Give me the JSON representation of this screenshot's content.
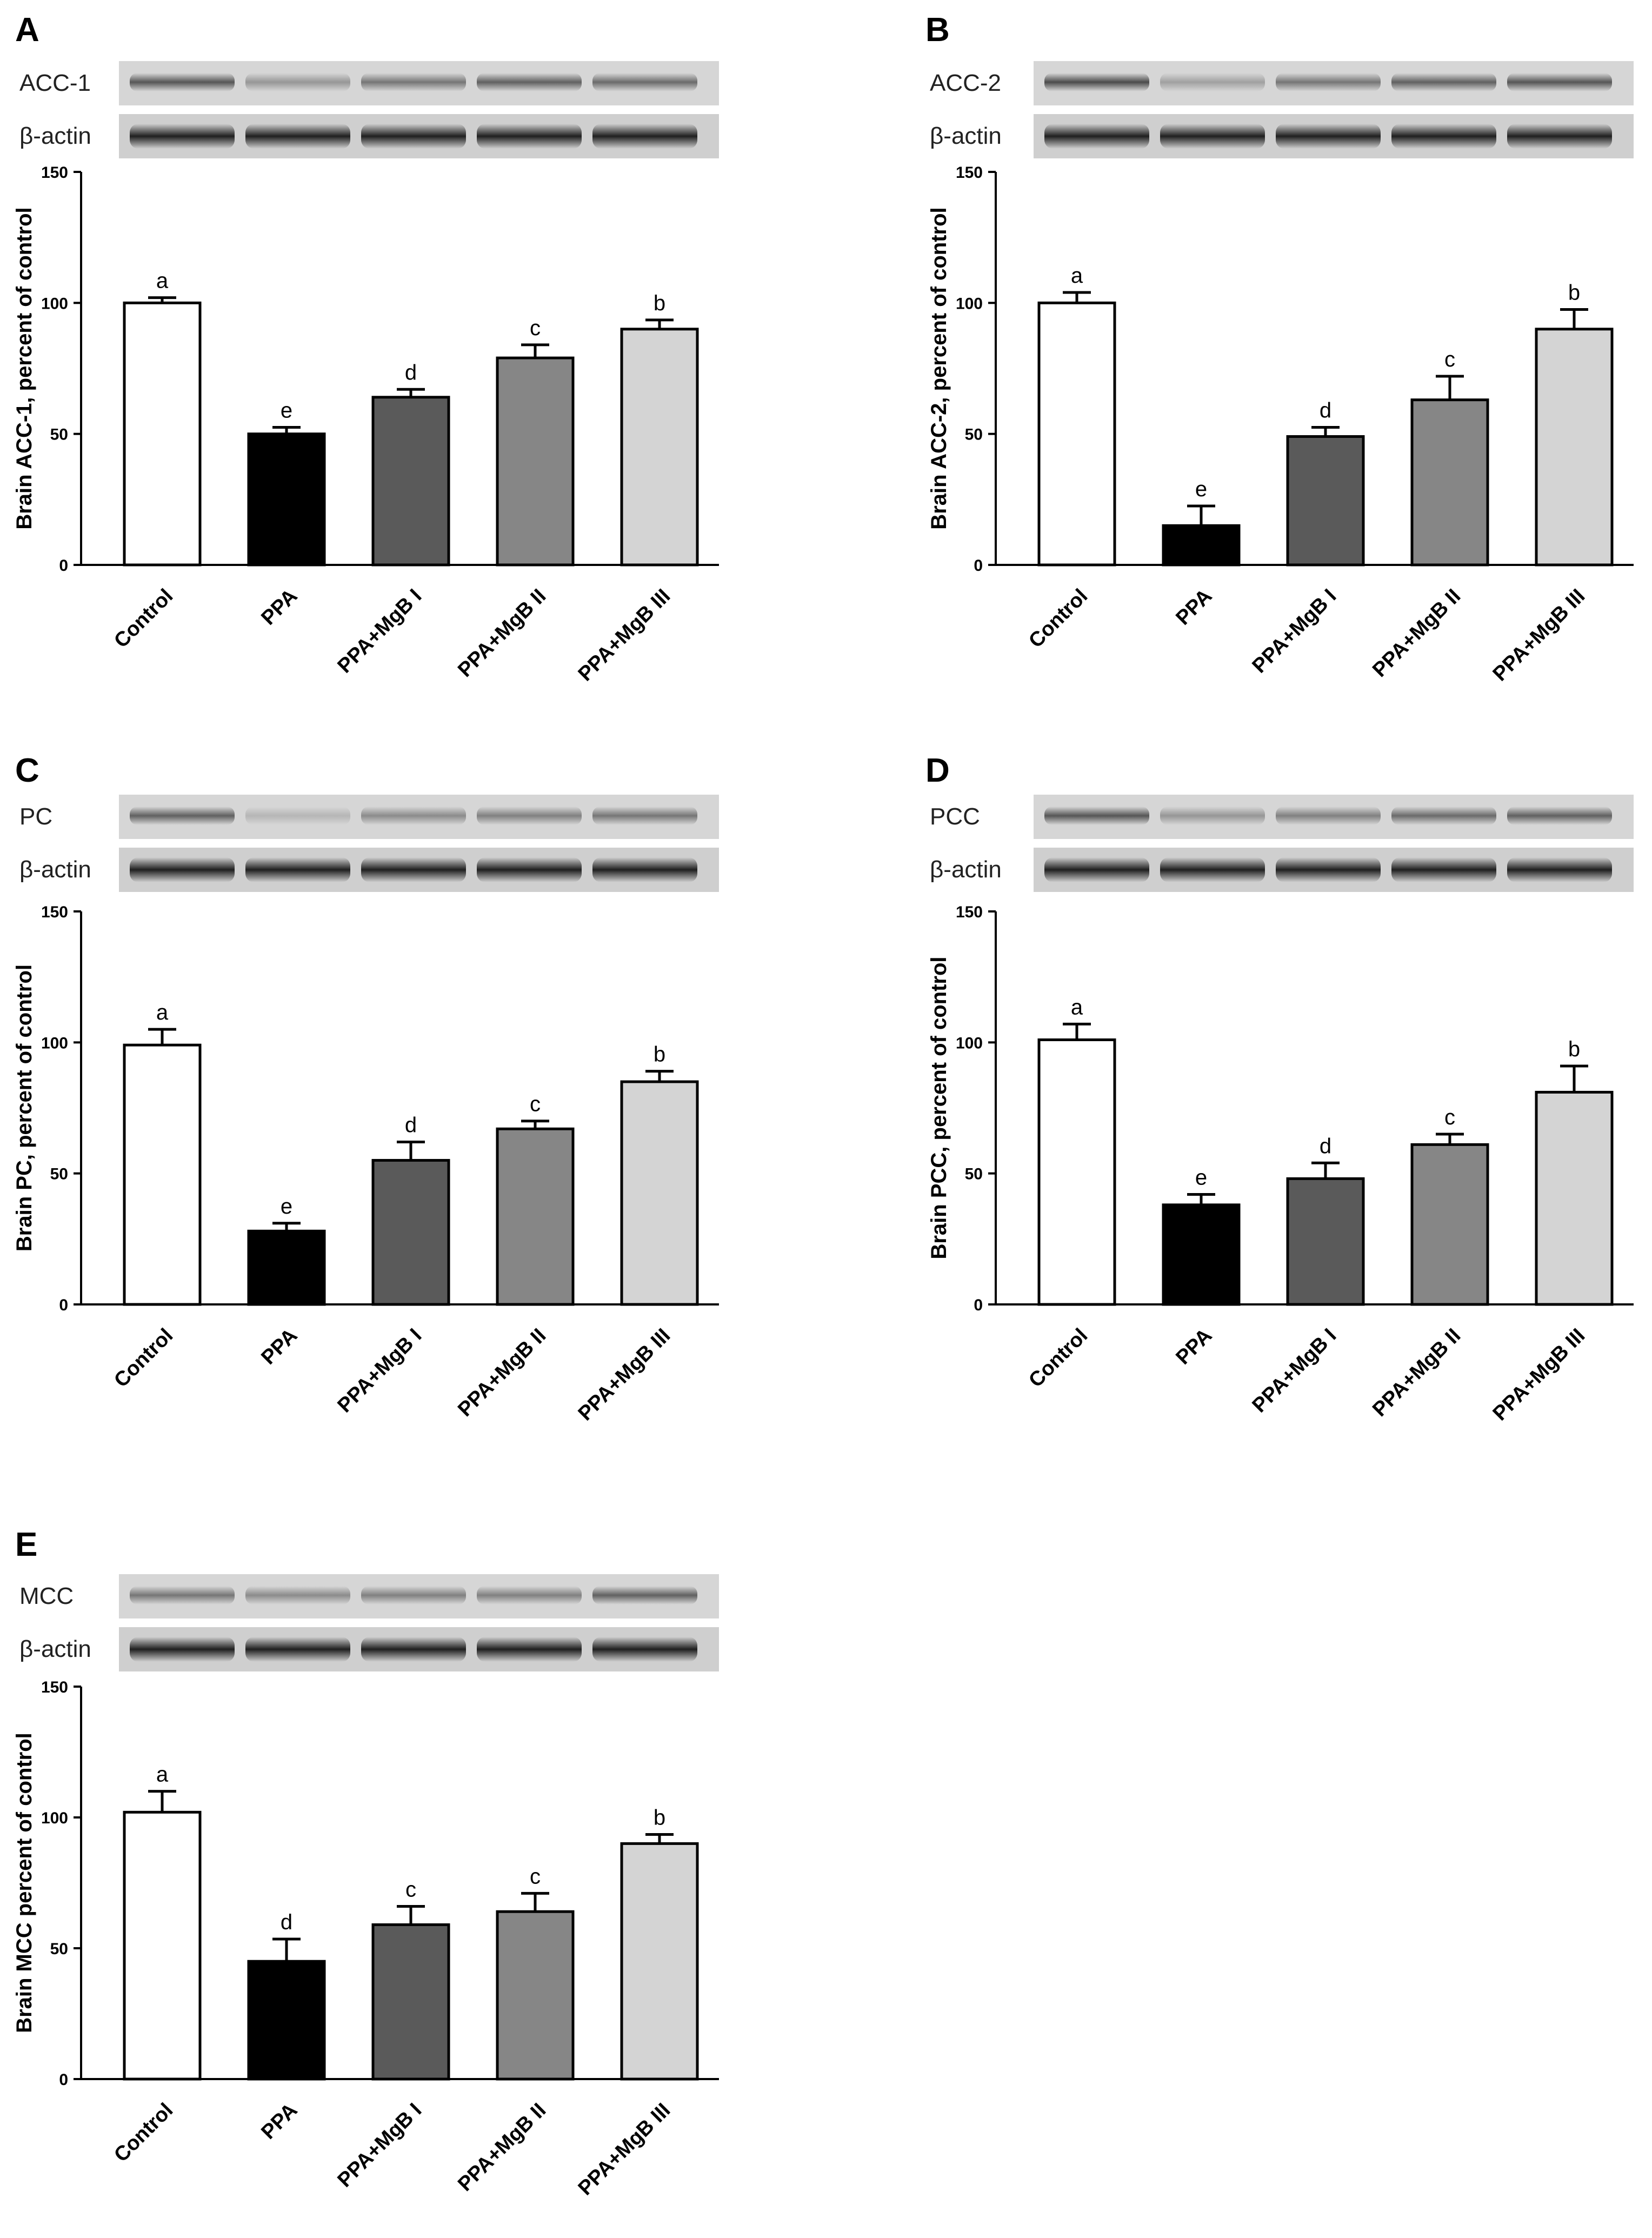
{
  "chart_data": [
    {
      "panel": "A",
      "type": "bar",
      "blot_label": "ACC-1",
      "loading_control": "β-actin",
      "ylabel": "Brain ACC-1, percent of control",
      "ylim": [
        0,
        150
      ],
      "yticks": [
        0,
        50,
        100,
        150
      ],
      "categories": [
        "Control",
        "PPA",
        "PPA+MgB I",
        "PPA+MgB II",
        "PPA+MgB III"
      ],
      "values": [
        100,
        50,
        64,
        79,
        90
      ],
      "errors": [
        2,
        2.5,
        3,
        5,
        3.5
      ],
      "significance": [
        "a",
        "e",
        "d",
        "c",
        "b"
      ],
      "colors": [
        "#ffffff",
        "#000000",
        "#5a5a5a",
        "#868686",
        "#d4d4d4"
      ]
    },
    {
      "panel": "B",
      "type": "bar",
      "blot_label": "ACC-2",
      "loading_control": "β-actin",
      "ylabel": "Brain ACC-2, percent of control",
      "ylim": [
        0,
        150
      ],
      "yticks": [
        0,
        50,
        100,
        150
      ],
      "categories": [
        "Control",
        "PPA",
        "PPA+MgB I",
        "PPA+MgB II",
        "PPA+MgB III"
      ],
      "values": [
        100,
        15,
        49,
        63,
        90
      ],
      "errors": [
        4,
        7.5,
        3.5,
        9,
        7.5
      ],
      "significance": [
        "a",
        "e",
        "d",
        "c",
        "b"
      ],
      "colors": [
        "#ffffff",
        "#000000",
        "#5a5a5a",
        "#868686",
        "#d4d4d4"
      ]
    },
    {
      "panel": "C",
      "type": "bar",
      "blot_label": "PC",
      "loading_control": "β-actin",
      "ylabel": "Brain PC, percent of control",
      "ylim": [
        0,
        150
      ],
      "yticks": [
        0,
        50,
        100,
        150
      ],
      "categories": [
        "Control",
        "PPA",
        "PPA+MgB I",
        "PPA+MgB II",
        "PPA+MgB III"
      ],
      "values": [
        99,
        28,
        55,
        67,
        85
      ],
      "errors": [
        6,
        3,
        7,
        3,
        4
      ],
      "significance": [
        "a",
        "e",
        "d",
        "c",
        "b"
      ],
      "colors": [
        "#ffffff",
        "#000000",
        "#5a5a5a",
        "#868686",
        "#d4d4d4"
      ]
    },
    {
      "panel": "D",
      "type": "bar",
      "blot_label": "PCC",
      "loading_control": "β-actin",
      "ylabel": "Brain PCC, percent of control",
      "ylim": [
        0,
        150
      ],
      "yticks": [
        0,
        50,
        100,
        150
      ],
      "categories": [
        "Control",
        "PPA",
        "PPA+MgB I",
        "PPA+MgB II",
        "PPA+MgB III"
      ],
      "values": [
        101,
        38,
        48,
        61,
        81
      ],
      "errors": [
        6,
        4,
        6,
        4,
        10
      ],
      "significance": [
        "a",
        "e",
        "d",
        "c",
        "b"
      ],
      "colors": [
        "#ffffff",
        "#000000",
        "#5a5a5a",
        "#868686",
        "#d4d4d4"
      ]
    },
    {
      "panel": "E",
      "type": "bar",
      "blot_label": "MCC",
      "loading_control": "β-actin",
      "ylabel": "Brain MCC percent of control",
      "ylim": [
        0,
        150
      ],
      "yticks": [
        0,
        50,
        100,
        150
      ],
      "categories": [
        "Control",
        "PPA",
        "PPA+MgB I",
        "PPA+MgB II",
        "PPA+MgB III"
      ],
      "values": [
        102,
        45,
        59,
        64,
        90
      ],
      "errors": [
        8,
        8.5,
        7,
        7,
        3.5
      ],
      "significance": [
        "a",
        "d",
        "c",
        "c",
        "b"
      ],
      "colors": [
        "#ffffff",
        "#000000",
        "#5a5a5a",
        "#868686",
        "#d4d4d4"
      ]
    }
  ]
}
